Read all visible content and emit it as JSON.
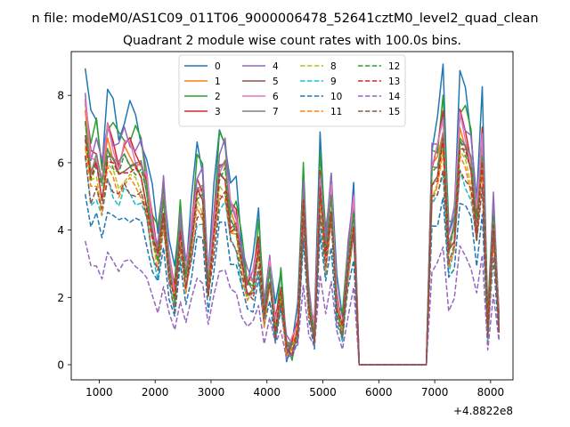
{
  "chart_data": {
    "type": "line",
    "suptitle": "n file: modeM0/AS1C09_011T06_9000006478_52641cztM0_level2_quad_clean",
    "title": "Quadrant 2 module wise count rates with 100.0s bins.",
    "xlabel": "",
    "ylabel": "",
    "offset_label": "+4.8822e8",
    "xlim": [
      500,
      8400
    ],
    "ylim": [
      -0.45,
      9.3
    ],
    "xticks": [
      1000,
      2000,
      3000,
      4000,
      5000,
      6000,
      7000,
      8000
    ],
    "yticks": [
      0,
      2,
      4,
      6,
      8
    ],
    "grid": false,
    "legend_position": "upper-center",
    "legend_columns": 4,
    "x": [
      750,
      850,
      950,
      1050,
      1150,
      1250,
      1350,
      1450,
      1550,
      1650,
      1750,
      1850,
      1950,
      2050,
      2150,
      2250,
      2350,
      2450,
      2550,
      2650,
      2750,
      2850,
      2950,
      3050,
      3150,
      3250,
      3350,
      3450,
      3550,
      3650,
      3750,
      3850,
      3950,
      4050,
      4150,
      4250,
      4350,
      4450,
      4550,
      4650,
      4750,
      4850,
      4950,
      5050,
      5150,
      5250,
      5350,
      5450,
      5550,
      5650,
      5750,
      5850,
      5950,
      6050,
      6150,
      6250,
      6350,
      6450,
      6550,
      6650,
      6750,
      6850,
      6950,
      7050,
      7150,
      7250,
      7350,
      7450,
      7550,
      7650,
      7750,
      7850,
      7950,
      8050,
      8150
    ],
    "base_profile": [
      1.0,
      0.8,
      0.84,
      0.72,
      0.9,
      0.85,
      0.8,
      0.85,
      0.84,
      0.82,
      0.8,
      0.7,
      0.55,
      0.45,
      0.66,
      0.4,
      0.28,
      0.55,
      0.35,
      0.52,
      0.72,
      0.7,
      0.32,
      0.55,
      0.79,
      0.8,
      0.6,
      0.58,
      0.42,
      0.32,
      0.33,
      0.49,
      0.2,
      0.38,
      0.15,
      0.3,
      0.07,
      0.07,
      0.15,
      0.68,
      0.25,
      0.12,
      0.74,
      0.45,
      0.68,
      0.25,
      0.14,
      0.42,
      0.62,
      0.0,
      0.0,
      0.0,
      0.0,
      0.0,
      0.0,
      0.0,
      0.0,
      0.0,
      0.0,
      0.0,
      0.0,
      0.0,
      0.78,
      0.82,
      0.96,
      0.47,
      0.55,
      0.95,
      0.9,
      0.82,
      0.58,
      0.88,
      0.14,
      0.6,
      0.17
    ],
    "series": [
      {
        "name": "0",
        "color": "#1f77b4",
        "dash": "solid",
        "scale": 8.8,
        "jitter": 0.1
      },
      {
        "name": "1",
        "color": "#ff7f0e",
        "dash": "solid",
        "scale": 7.4,
        "jitter": 0.05
      },
      {
        "name": "2",
        "color": "#2ca02c",
        "dash": "solid",
        "scale": 8.2,
        "jitter": 0.09
      },
      {
        "name": "3",
        "color": "#d62728",
        "dash": "solid",
        "scale": 7.7,
        "jitter": 0.06
      },
      {
        "name": "4",
        "color": "#9467bd",
        "dash": "solid",
        "scale": 8.0,
        "jitter": 0.07
      },
      {
        "name": "5",
        "color": "#8c564b",
        "dash": "solid",
        "scale": 7.0,
        "jitter": 0.05
      },
      {
        "name": "6",
        "color": "#e377c2",
        "dash": "solid",
        "scale": 7.6,
        "jitter": 0.07
      },
      {
        "name": "7",
        "color": "#7f7f7f",
        "dash": "solid",
        "scale": 7.3,
        "jitter": 0.05
      },
      {
        "name": "8",
        "color": "#bcbd22",
        "dash": "dashed",
        "scale": 6.6,
        "jitter": 0.05
      },
      {
        "name": "9",
        "color": "#17becf",
        "dash": "dashed",
        "scale": 6.0,
        "jitter": 0.05
      },
      {
        "name": "10",
        "color": "#1f77b4",
        "dash": "dashed",
        "scale": 5.2,
        "jitter": 0.05
      },
      {
        "name": "11",
        "color": "#ff7f0e",
        "dash": "dashed",
        "scale": 6.4,
        "jitter": 0.05
      },
      {
        "name": "12",
        "color": "#2ca02c",
        "dash": "dashed",
        "scale": 7.1,
        "jitter": 0.05
      },
      {
        "name": "13",
        "color": "#d62728",
        "dash": "dashed",
        "scale": 6.9,
        "jitter": 0.05
      },
      {
        "name": "14",
        "color": "#9467bd",
        "dash": "dashed",
        "scale": 3.6,
        "jitter": 0.05
      },
      {
        "name": "15",
        "color": "#8c564b",
        "dash": "dashed",
        "scale": 6.2,
        "jitter": 0.05
      }
    ]
  }
}
